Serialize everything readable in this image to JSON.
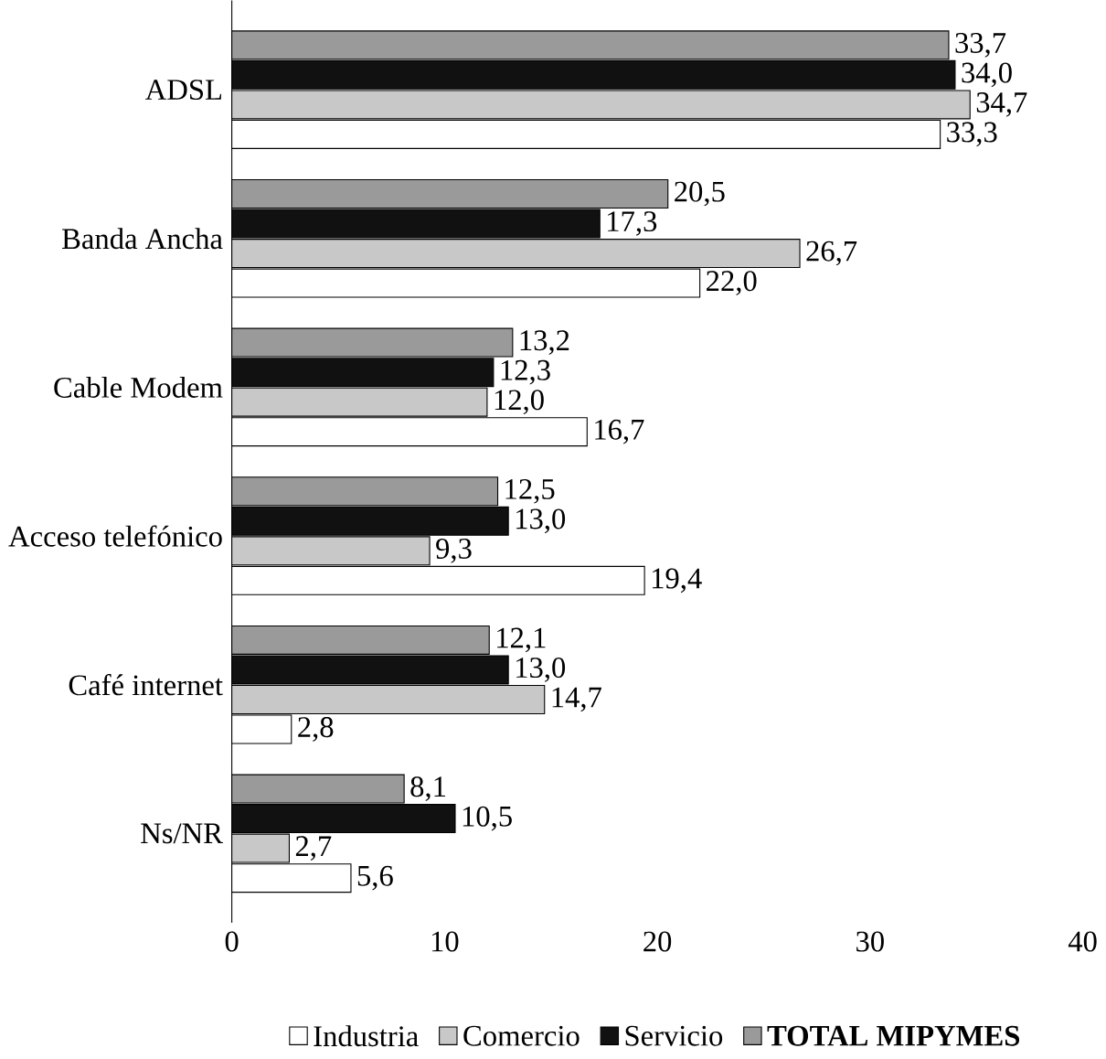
{
  "chart_data": {
    "type": "bar",
    "orientation": "horizontal",
    "categories": [
      "ADSL",
      "Banda Ancha",
      "Cable Modem",
      "Acceso telefónico",
      "Café internet",
      "Ns/NR"
    ],
    "series": [
      {
        "name": "Industria",
        "color": "#ffffff",
        "values": [
          33.3,
          22.0,
          16.7,
          19.4,
          2.8,
          5.6
        ],
        "value_labels": [
          "33,3",
          "22,0",
          "16,7",
          "19,4",
          "2,8",
          "5,6"
        ]
      },
      {
        "name": "Comercio",
        "color": "#c8c8c8",
        "values": [
          34.7,
          26.7,
          12.0,
          9.3,
          14.7,
          2.7
        ],
        "value_labels": [
          "34,7",
          "26,7",
          "12,0",
          "9,3",
          "14,7",
          "2,7"
        ]
      },
      {
        "name": "Servicio",
        "color": "#111111",
        "values": [
          34.0,
          17.3,
          12.3,
          13.0,
          13.0,
          10.5
        ],
        "value_labels": [
          "34,0",
          "17,3",
          "12,3",
          "13,0",
          "13,0",
          "10,5"
        ]
      },
      {
        "name": "**TOTAL MIPYMES**",
        "color": "#9a9a9a",
        "values": [
          33.7,
          20.5,
          13.2,
          12.5,
          12.1,
          8.1
        ],
        "value_labels": [
          "33,7",
          "20,5",
          "13,2",
          "12,5",
          "12,1",
          "8,1"
        ]
      }
    ],
    "xlim": [
      0,
      40
    ],
    "xticks": [
      0,
      10,
      20,
      30,
      40
    ],
    "grid": false,
    "legend": "bottom"
  }
}
